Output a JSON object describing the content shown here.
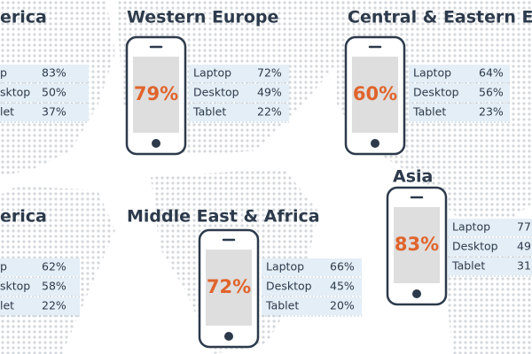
{
  "regions": [
    {
      "title": "erica",
      "rows": [
        {
          "label": "p",
          "value": "83%"
        },
        {
          "label": "sktop",
          "value": "50%"
        },
        {
          "label": "let",
          "value": "37%"
        }
      ]
    },
    {
      "title": "Western Europe",
      "percent": "79%",
      "rows": [
        {
          "label": "Laptop",
          "value": "72%"
        },
        {
          "label": "Desktop",
          "value": "49%"
        },
        {
          "label": "Tablet",
          "value": "22%"
        }
      ]
    },
    {
      "title": "Central & Eastern E",
      "percent": "60%",
      "rows": [
        {
          "label": "Laptop",
          "value": "64%"
        },
        {
          "label": "Desktop",
          "value": "56%"
        },
        {
          "label": "Tablet",
          "value": "23%"
        }
      ]
    },
    {
      "title": "erica",
      "rows": [
        {
          "label": "p",
          "value": "62%"
        },
        {
          "label": "sktop",
          "value": "58%"
        },
        {
          "label": "let",
          "value": "22%"
        }
      ]
    },
    {
      "title": "Middle East & Africa",
      "percent": "72%",
      "rows": [
        {
          "label": "Laptop",
          "value": "66%"
        },
        {
          "label": "Desktop",
          "value": "45%"
        },
        {
          "label": "Tablet",
          "value": "20%"
        }
      ]
    },
    {
      "title": "Asia",
      "percent": "83%",
      "rows": [
        {
          "label": "Laptop",
          "value": "77"
        },
        {
          "label": "Desktop",
          "value": "49"
        },
        {
          "label": "Tablet",
          "value": "31"
        }
      ]
    }
  ]
}
